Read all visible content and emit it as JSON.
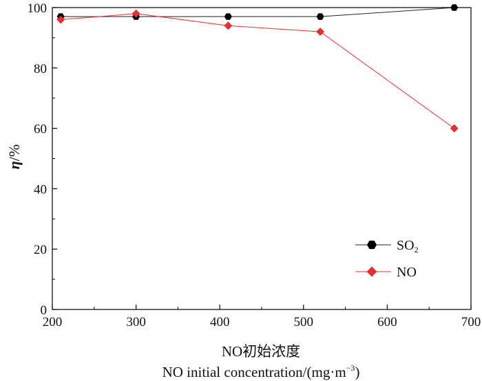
{
  "chart_data": {
    "type": "line",
    "title": "",
    "xlabel_cn": "NO初始浓度",
    "xlabel_en": "NO initial concentration/(mg·m",
    "xlabel_sup": "−3",
    "xlabel_close": ")",
    "ylabel_symbol": "η",
    "ylabel_unit": "/%",
    "xlim": [
      200,
      700
    ],
    "ylim": [
      0,
      100
    ],
    "xticks": [
      200,
      300,
      400,
      500,
      600,
      700
    ],
    "yticks": [
      0,
      20,
      40,
      60,
      80,
      100
    ],
    "grid": false,
    "legend_position": "lower-right",
    "series": [
      {
        "name": "SO",
        "name_sub": "2",
        "x": [
          210,
          300,
          410,
          520,
          680
        ],
        "y": [
          97,
          97,
          97,
          97,
          100
        ],
        "color": "#000000",
        "line_color": "#222222",
        "marker": "hexagon"
      },
      {
        "name": "NO",
        "name_sub": "",
        "x": [
          210,
          300,
          410,
          520,
          680
        ],
        "y": [
          96,
          98,
          94,
          92,
          60
        ],
        "color": "#e8312f",
        "line_color": "#e8312f",
        "marker": "diamond"
      }
    ]
  }
}
